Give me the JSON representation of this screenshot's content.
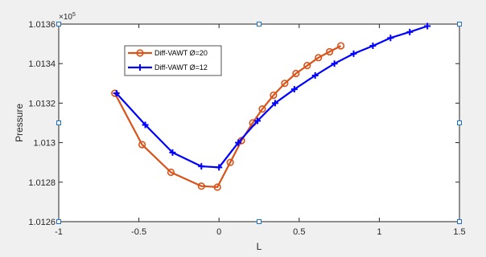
{
  "chart_data": {
    "type": "line",
    "title": "",
    "xlabel": "L",
    "ylabel": "Pressure",
    "y_exponent_label": "×10",
    "y_exponent_power": "5",
    "xlim": [
      -1,
      1.5
    ],
    "ylim": [
      1.0126,
      1.0136
    ],
    "x_ticks": [
      -1,
      -0.5,
      0,
      0.5,
      1,
      1.5
    ],
    "x_tick_labels": [
      "-1",
      "-0.5",
      "0",
      "0.5",
      "1",
      "1.5"
    ],
    "y_ticks": [
      1.0126,
      1.0128,
      1.013,
      1.0132,
      1.0134,
      1.0136
    ],
    "y_tick_labels": [
      "1.0126",
      "1.0128",
      "1.013",
      "1.0132",
      "1.0134",
      "1.0136"
    ],
    "grid": false,
    "legend_position": "upper-left",
    "series": [
      {
        "name": "Diff-VAWT Ø=20",
        "color": "#d95319",
        "marker": "circle",
        "x": [
          -0.65,
          -0.48,
          -0.3,
          -0.11,
          -0.01,
          0.07,
          0.14,
          0.21,
          0.27,
          0.34,
          0.41,
          0.48,
          0.55,
          0.62,
          0.69,
          0.76
        ],
        "y": [
          1.01325,
          1.01299,
          1.01285,
          1.01278,
          1.012775,
          1.0129,
          1.01301,
          1.0131,
          1.01317,
          1.01324,
          1.0133,
          1.01335,
          1.01339,
          1.01343,
          1.01346,
          1.01349
        ]
      },
      {
        "name": "Diff-VAWT Ø=12",
        "color": "#0000ff",
        "marker": "plus",
        "x": [
          -0.64,
          -0.46,
          -0.29,
          -0.11,
          0.0,
          0.12,
          0.24,
          0.35,
          0.47,
          0.6,
          0.72,
          0.84,
          0.96,
          1.07,
          1.19,
          1.3
        ],
        "y": [
          1.01325,
          1.01309,
          1.01295,
          1.01288,
          1.012875,
          1.013,
          1.01311,
          1.0132,
          1.01327,
          1.01334,
          1.0134,
          1.01345,
          1.01349,
          1.01353,
          1.01356,
          1.01359
        ]
      }
    ]
  }
}
